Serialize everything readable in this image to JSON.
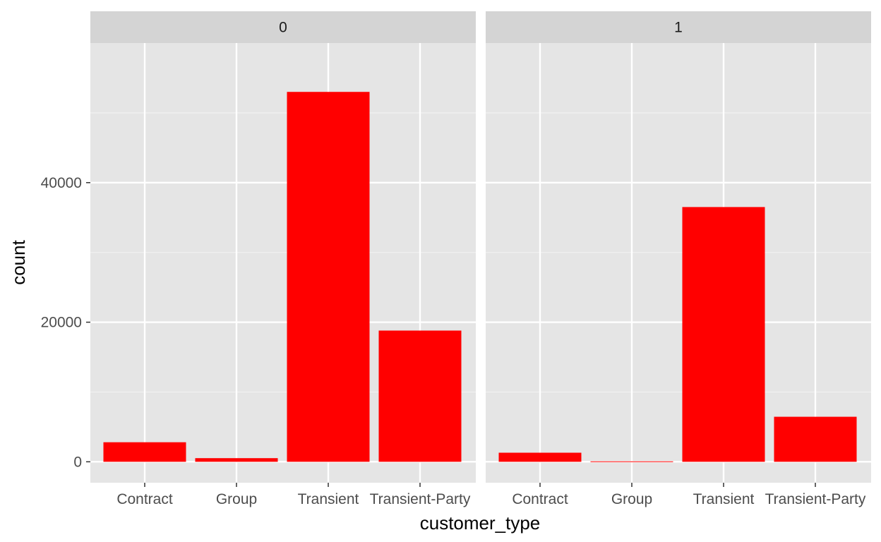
{
  "chart_data": {
    "type": "bar",
    "xlabel": "customer_type",
    "ylabel": "count",
    "facet_labels": [
      "0",
      "1"
    ],
    "categories": [
      "Contract",
      "Group",
      "Transient",
      "Transient-Party"
    ],
    "panels": [
      {
        "facet": "0",
        "values": [
          2800,
          520,
          53000,
          18800
        ]
      },
      {
        "facet": "1",
        "values": [
          1300,
          60,
          36500,
          6450
        ]
      }
    ],
    "y_ticks": [
      0,
      20000,
      40000
    ],
    "y_tick_labels": [
      "0",
      "20000",
      "40000"
    ],
    "ylim": [
      -3000,
      60000
    ],
    "bar_color": "#ff0000",
    "panel_background": "#e5e5e5",
    "strip_background": "#d4d4d4",
    "grid": true,
    "legend": "none"
  }
}
